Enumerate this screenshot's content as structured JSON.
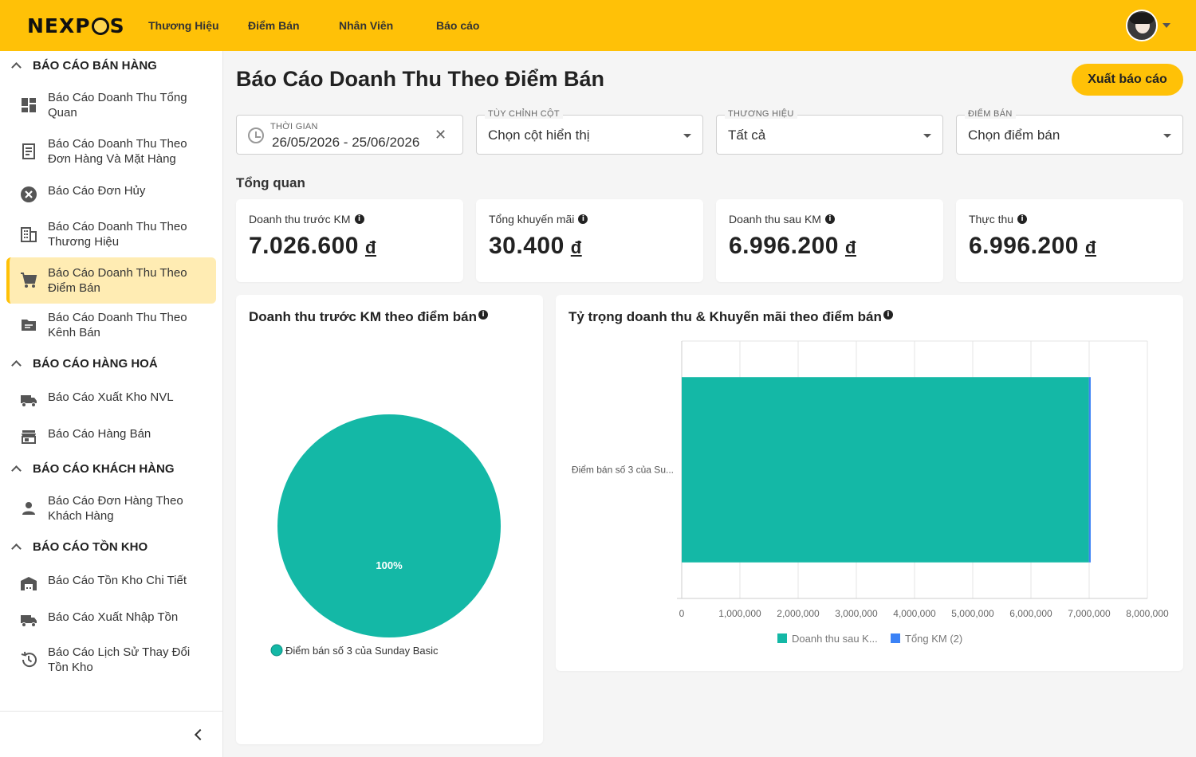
{
  "header": {
    "logo": "NEXPOS",
    "nav": [
      "Thương Hiệu",
      "Điểm Bán",
      "Nhân Viên",
      "Báo cáo"
    ]
  },
  "sidebar": {
    "sections": [
      {
        "title": "BÁO CÁO BÁN HÀNG",
        "items": [
          {
            "label": "Báo Cáo Doanh Thu Tổng Quan",
            "icon": "dashboard-icon"
          },
          {
            "label": "Báo Cáo Doanh Thu Theo Đơn Hàng Và Mặt Hàng",
            "icon": "receipt-icon"
          },
          {
            "label": "Báo Cáo Đơn Hủy",
            "icon": "cancel-icon"
          },
          {
            "label": "Báo Cáo Doanh Thu Theo Thương Hiệu",
            "icon": "building-icon"
          },
          {
            "label": "Báo Cáo Doanh Thu Theo Điểm Bán",
            "icon": "cart-icon",
            "active": true
          },
          {
            "label": "Báo Cáo Doanh Thu Theo Kênh Bán",
            "icon": "folder-icon"
          }
        ]
      },
      {
        "title": "BÁO CÁO HÀNG HOÁ",
        "items": [
          {
            "label": "Báo Cáo Xuất Kho NVL",
            "icon": "truck-icon"
          },
          {
            "label": "Báo Cáo Hàng Bán",
            "icon": "store-icon"
          }
        ]
      },
      {
        "title": "BÁO CÁO KHÁCH HÀNG",
        "items": [
          {
            "label": "Báo Cáo Đơn Hàng Theo Khách Hàng",
            "icon": "person-icon"
          }
        ]
      },
      {
        "title": "BÁO CÁO TỒN KHO",
        "items": [
          {
            "label": "Báo Cáo Tồn Kho Chi Tiết",
            "icon": "warehouse-icon"
          },
          {
            "label": "Báo Cáo Xuất Nhập Tồn",
            "icon": "truck-icon"
          },
          {
            "label": "Báo Cáo Lịch Sử Thay Đổi Tồn Kho",
            "icon": "history-icon"
          }
        ]
      }
    ]
  },
  "main": {
    "title": "Báo Cáo Doanh Thu Theo Điểm Bán",
    "export_label": "Xuất báo cáo",
    "filters": {
      "time_label": "THỜI GIAN",
      "time_value": "26/05/2026 - 25/06/2026",
      "column_label": "TÙY CHỈNH CỘT",
      "column_value": "Chọn cột hiển thị",
      "brand_label": "THƯƠNG HIỆU",
      "brand_value": "Tất cả",
      "store_label": "ĐIỂM BÁN",
      "store_value": "Chọn điểm bán"
    },
    "overview_label": "Tổng quan",
    "kpis": [
      {
        "label": "Doanh thu trước KM",
        "value": "7.026.600",
        "currency": "đ"
      },
      {
        "label": "Tổng khuyến mãi",
        "value": "30.400",
        "currency": "đ"
      },
      {
        "label": "Doanh thu sau KM",
        "value": "6.996.200",
        "currency": "đ"
      },
      {
        "label": "Thực thu",
        "value": "6.996.200",
        "currency": "đ"
      }
    ]
  },
  "colors": {
    "accent": "#ffc107",
    "teal": "#14b8a6",
    "blue": "#3b82f6"
  },
  "chart_data": [
    {
      "type": "pie",
      "title": "Doanh thu trước KM theo điểm bán",
      "labels": [
        "Điểm bán số 3 của Sunday Basic"
      ],
      "values": [
        100
      ],
      "value_labels": [
        "100%"
      ],
      "legend": "bottom-left"
    },
    {
      "type": "bar",
      "orientation": "horizontal",
      "stacked": true,
      "title": "Tỷ trọng doanh thu & Khuyến mãi theo điểm bán",
      "categories": [
        "Điểm bán số 3 của Su..."
      ],
      "series": [
        {
          "name": "Doanh thu sau K...",
          "values": [
            6996200
          ],
          "color": "#14b8a6"
        },
        {
          "name": "Tổng KM (2)",
          "values": [
            30400
          ],
          "color": "#3b82f6"
        }
      ],
      "xlim": [
        0,
        8000000
      ],
      "xticks": [
        "0",
        "1,000,000",
        "2,000,000",
        "3,000,000",
        "4,000,000",
        "5,000,000",
        "6,000,000",
        "7,000,000",
        "8,000,000"
      ],
      "grid": true,
      "legend": "bottom"
    }
  ]
}
